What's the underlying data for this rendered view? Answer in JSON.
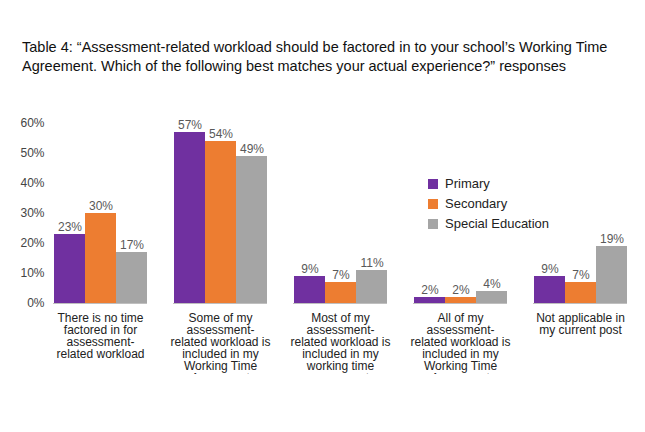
{
  "chart_data": {
    "type": "bar",
    "title": "Table 4: “Assessment-related workload should be factored in to your school’s Working Time Agreement. Which of the following best matches your actual experience?” responses",
    "categories": [
      "There is no time factored in for assessment-related workload",
      "Some of my assessment-related workload is included in my Working Time Agreement",
      "Most of my assessment-related workload is included in my working time agreement",
      "All of my assessment-related workload is included in my Working Time Agreement",
      "Not applicable in my current post"
    ],
    "series": [
      {
        "name": "Primary",
        "color": "#7030a0",
        "values": [
          23,
          57,
          9,
          2,
          9
        ],
        "value_labels": [
          "23%",
          "57%",
          "9%",
          "2%",
          "9%"
        ]
      },
      {
        "name": "Secondary",
        "color": "#ed7d31",
        "values": [
          30,
          54,
          7,
          2,
          7
        ],
        "value_labels": [
          "30%",
          "54%",
          "7%",
          "2%",
          "7%"
        ]
      },
      {
        "name": "Special Education",
        "color": "#a5a5a5",
        "values": [
          17,
          49,
          11,
          4,
          19
        ],
        "value_labels": [
          "17%",
          "49%",
          "11%",
          "4%",
          "19%"
        ]
      }
    ],
    "ylim": [
      0,
      60
    ],
    "yticks": [
      {
        "value": 0,
        "label": "0%"
      },
      {
        "value": 10,
        "label": "10%"
      },
      {
        "value": 20,
        "label": "20%"
      },
      {
        "value": 30,
        "label": "30%"
      },
      {
        "value": 40,
        "label": "40%"
      },
      {
        "value": 50,
        "label": "50%"
      },
      {
        "value": 60,
        "label": "60%"
      }
    ],
    "grid": false,
    "legend": "right",
    "data_labels": true
  }
}
